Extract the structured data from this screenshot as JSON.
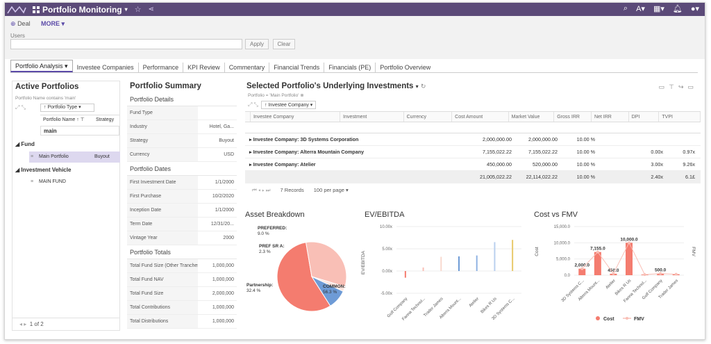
{
  "topbar": {
    "title": "Portfolio Monitoring",
    "icons": [
      "star-icon",
      "share-icon",
      "search-icon",
      "user-icon",
      "grid-icon",
      "bell-icon",
      "person-icon"
    ]
  },
  "actions": {
    "deal": "Deal",
    "more": "MORE",
    "users_label": "Users",
    "apply": "Apply",
    "clear": "Clear"
  },
  "tabs": [
    "Portfolio Analysis",
    "Investee Companies",
    "Performance",
    "KPI Review",
    "Commentary",
    "Financial Trends",
    "Financials (PE)",
    "Portfolio Overview"
  ],
  "active_portfolios": {
    "title": "Active Portfolios",
    "filter": "Portfolio Name contains 'main'",
    "type_button": "Portfolio Type",
    "col_name": "Portfolio Name",
    "col_strategy": "Strategy",
    "search_value": "main",
    "groups": [
      {
        "label": "Fund",
        "rows": [
          {
            "name": "Main Portfolio",
            "strategy": "Buyout"
          }
        ]
      },
      {
        "label": "Investment Vehicle",
        "rows": [
          {
            "name": "MAIN FUND",
            "strategy": ""
          }
        ]
      }
    ],
    "pager": "1 of 2"
  },
  "summary": {
    "title": "Portfolio Summary",
    "sections": [
      {
        "label": "Portfolio Details",
        "rows": [
          [
            "Fund Type",
            ""
          ],
          [
            "Industry",
            "Hotel, Ga..."
          ],
          [
            "Strategy",
            "Buyout"
          ],
          [
            "Currency",
            "USD"
          ]
        ]
      },
      {
        "label": "Portfolio Dates",
        "rows": [
          [
            "First Investment Date",
            "1/1/2000"
          ],
          [
            "First Purchase",
            "10/2/2020"
          ],
          [
            "Inception Date",
            "1/1/2000"
          ],
          [
            "Term Date",
            "12/31/20..."
          ],
          [
            "Vintage Year",
            "2000"
          ]
        ]
      },
      {
        "label": "Portfolio Totals",
        "rows": [
          [
            "Total Fund Size (Other Tranches)",
            "1,000,000"
          ],
          [
            "Total Fund NAV",
            "1,000,000"
          ],
          [
            "Total Fund Size",
            "2,000,000"
          ],
          [
            "Total Contributions",
            "1,000,000"
          ],
          [
            "Total Distributions",
            "1,000,000"
          ]
        ]
      }
    ]
  },
  "investments": {
    "title": "Selected Portfolio's Underlying Investments",
    "filter": "Portfolio = 'Main Portfolio'",
    "group_button": "Investee Company",
    "columns": [
      "Investee Company",
      "Investment",
      "Currency",
      "Cost Amount",
      "Market Value",
      "Gross IRR",
      "Net IRR",
      "DPI",
      "TVPI"
    ],
    "rows": [
      {
        "label": "Investee Company: 3D Systems Corporation",
        "cost": "2,000,000.00",
        "mv": "2,000,000.00",
        "girr": "10.00 %",
        "nirr": "",
        "dpi": "",
        "tvpi": ""
      },
      {
        "label": "Investee Company: Alterra Mountain Company",
        "cost": "7,155,022.22",
        "mv": "7,155,022.22",
        "girr": "10.00 %",
        "nirr": "",
        "dpi": "0.00x",
        "tvpi": "0.97x"
      },
      {
        "label": "Investee Company: Atelier",
        "cost": "450,000.00",
        "mv": "520,000.00",
        "girr": "10.00 %",
        "nirr": "",
        "dpi": "3.00x",
        "tvpi": "9.26x"
      }
    ],
    "total": {
      "cost": "21,005,022.22",
      "mv": "22,114,022.22",
      "girr": "10.00 %",
      "dpi": "2.40x",
      "tvpi": "6.1£"
    },
    "records": "7 Records",
    "per_page": "100 per page"
  },
  "asset_breakdown": {
    "title": "Asset Breakdown"
  },
  "ev_ebitda": {
    "title": "EV/EBITDA"
  },
  "cost_fmv": {
    "title": "Cost vs FMV"
  },
  "chart_data": [
    {
      "type": "pie",
      "title": "Asset Breakdown",
      "slices": [
        {
          "label": "COMMON:",
          "pct_label": "56.3 %",
          "value": 56.3,
          "color": "#f47c6f"
        },
        {
          "label": "Partnership:",
          "pct_label": "32.4 %",
          "value": 32.4,
          "color": "#f9bfb6"
        },
        {
          "label": "PREF SR A:",
          "pct_label": "2.3 %",
          "value": 2.3,
          "color": "#fde2dc"
        },
        {
          "label": "PREFERRED:",
          "pct_label": "9.0 %",
          "value": 9.0,
          "color": "#6e9bd6"
        }
      ]
    },
    {
      "type": "bar",
      "title": "EV/EBITDA",
      "ylabel": "EV/EBITDA",
      "ylim": [
        -5,
        10
      ],
      "ticks": [
        "10.00x",
        "5.00x",
        "0.00x",
        "-5.00x"
      ],
      "tick_values": [
        10,
        5,
        0,
        -5
      ],
      "categories": [
        "Golf Company",
        "Fanna Technol...",
        "Trader James",
        "Alterra Mount...",
        "Atelier",
        "Bikes R Us",
        "3D Systems C..."
      ],
      "values": [
        -1.5,
        0.8,
        3.2,
        3.3,
        3.5,
        6.5,
        7.0
      ],
      "colors": [
        "#f47c6f",
        "#f9bfb6",
        "#f9d9cf",
        "#6e9bd6",
        "#8fb3e3",
        "#b9d0ee",
        "#e8c96a"
      ]
    },
    {
      "type": "bar",
      "title": "Cost vs FMV",
      "ylabel": "Cost",
      "y2label": "FMV",
      "ylim": [
        0,
        15000
      ],
      "ticks": [
        "15,000.0",
        "10,000.0",
        "5,000.0",
        "0.0"
      ],
      "tick_values": [
        15000,
        10000,
        5000,
        0
      ],
      "categories": [
        "3D Systems C...",
        "Alterra Mount...",
        "Atelier",
        "Bikes R Us",
        "Fanna Technol...",
        "Golf Company",
        "Trader James"
      ],
      "series": [
        {
          "name": "Cost",
          "values": [
            2000,
            7155,
            450,
            10000,
            200,
            500,
            300
          ],
          "data_labels": [
            "2,000.0",
            "7,155.0",
            "450.0",
            "10,000.0",
            "",
            "500.0",
            ""
          ],
          "color": "#f47c6f"
        },
        {
          "name": "FMV",
          "values": [
            2000,
            7155,
            520,
            10000,
            200,
            500,
            300
          ],
          "color": "#f9bfb6"
        }
      ]
    }
  ]
}
